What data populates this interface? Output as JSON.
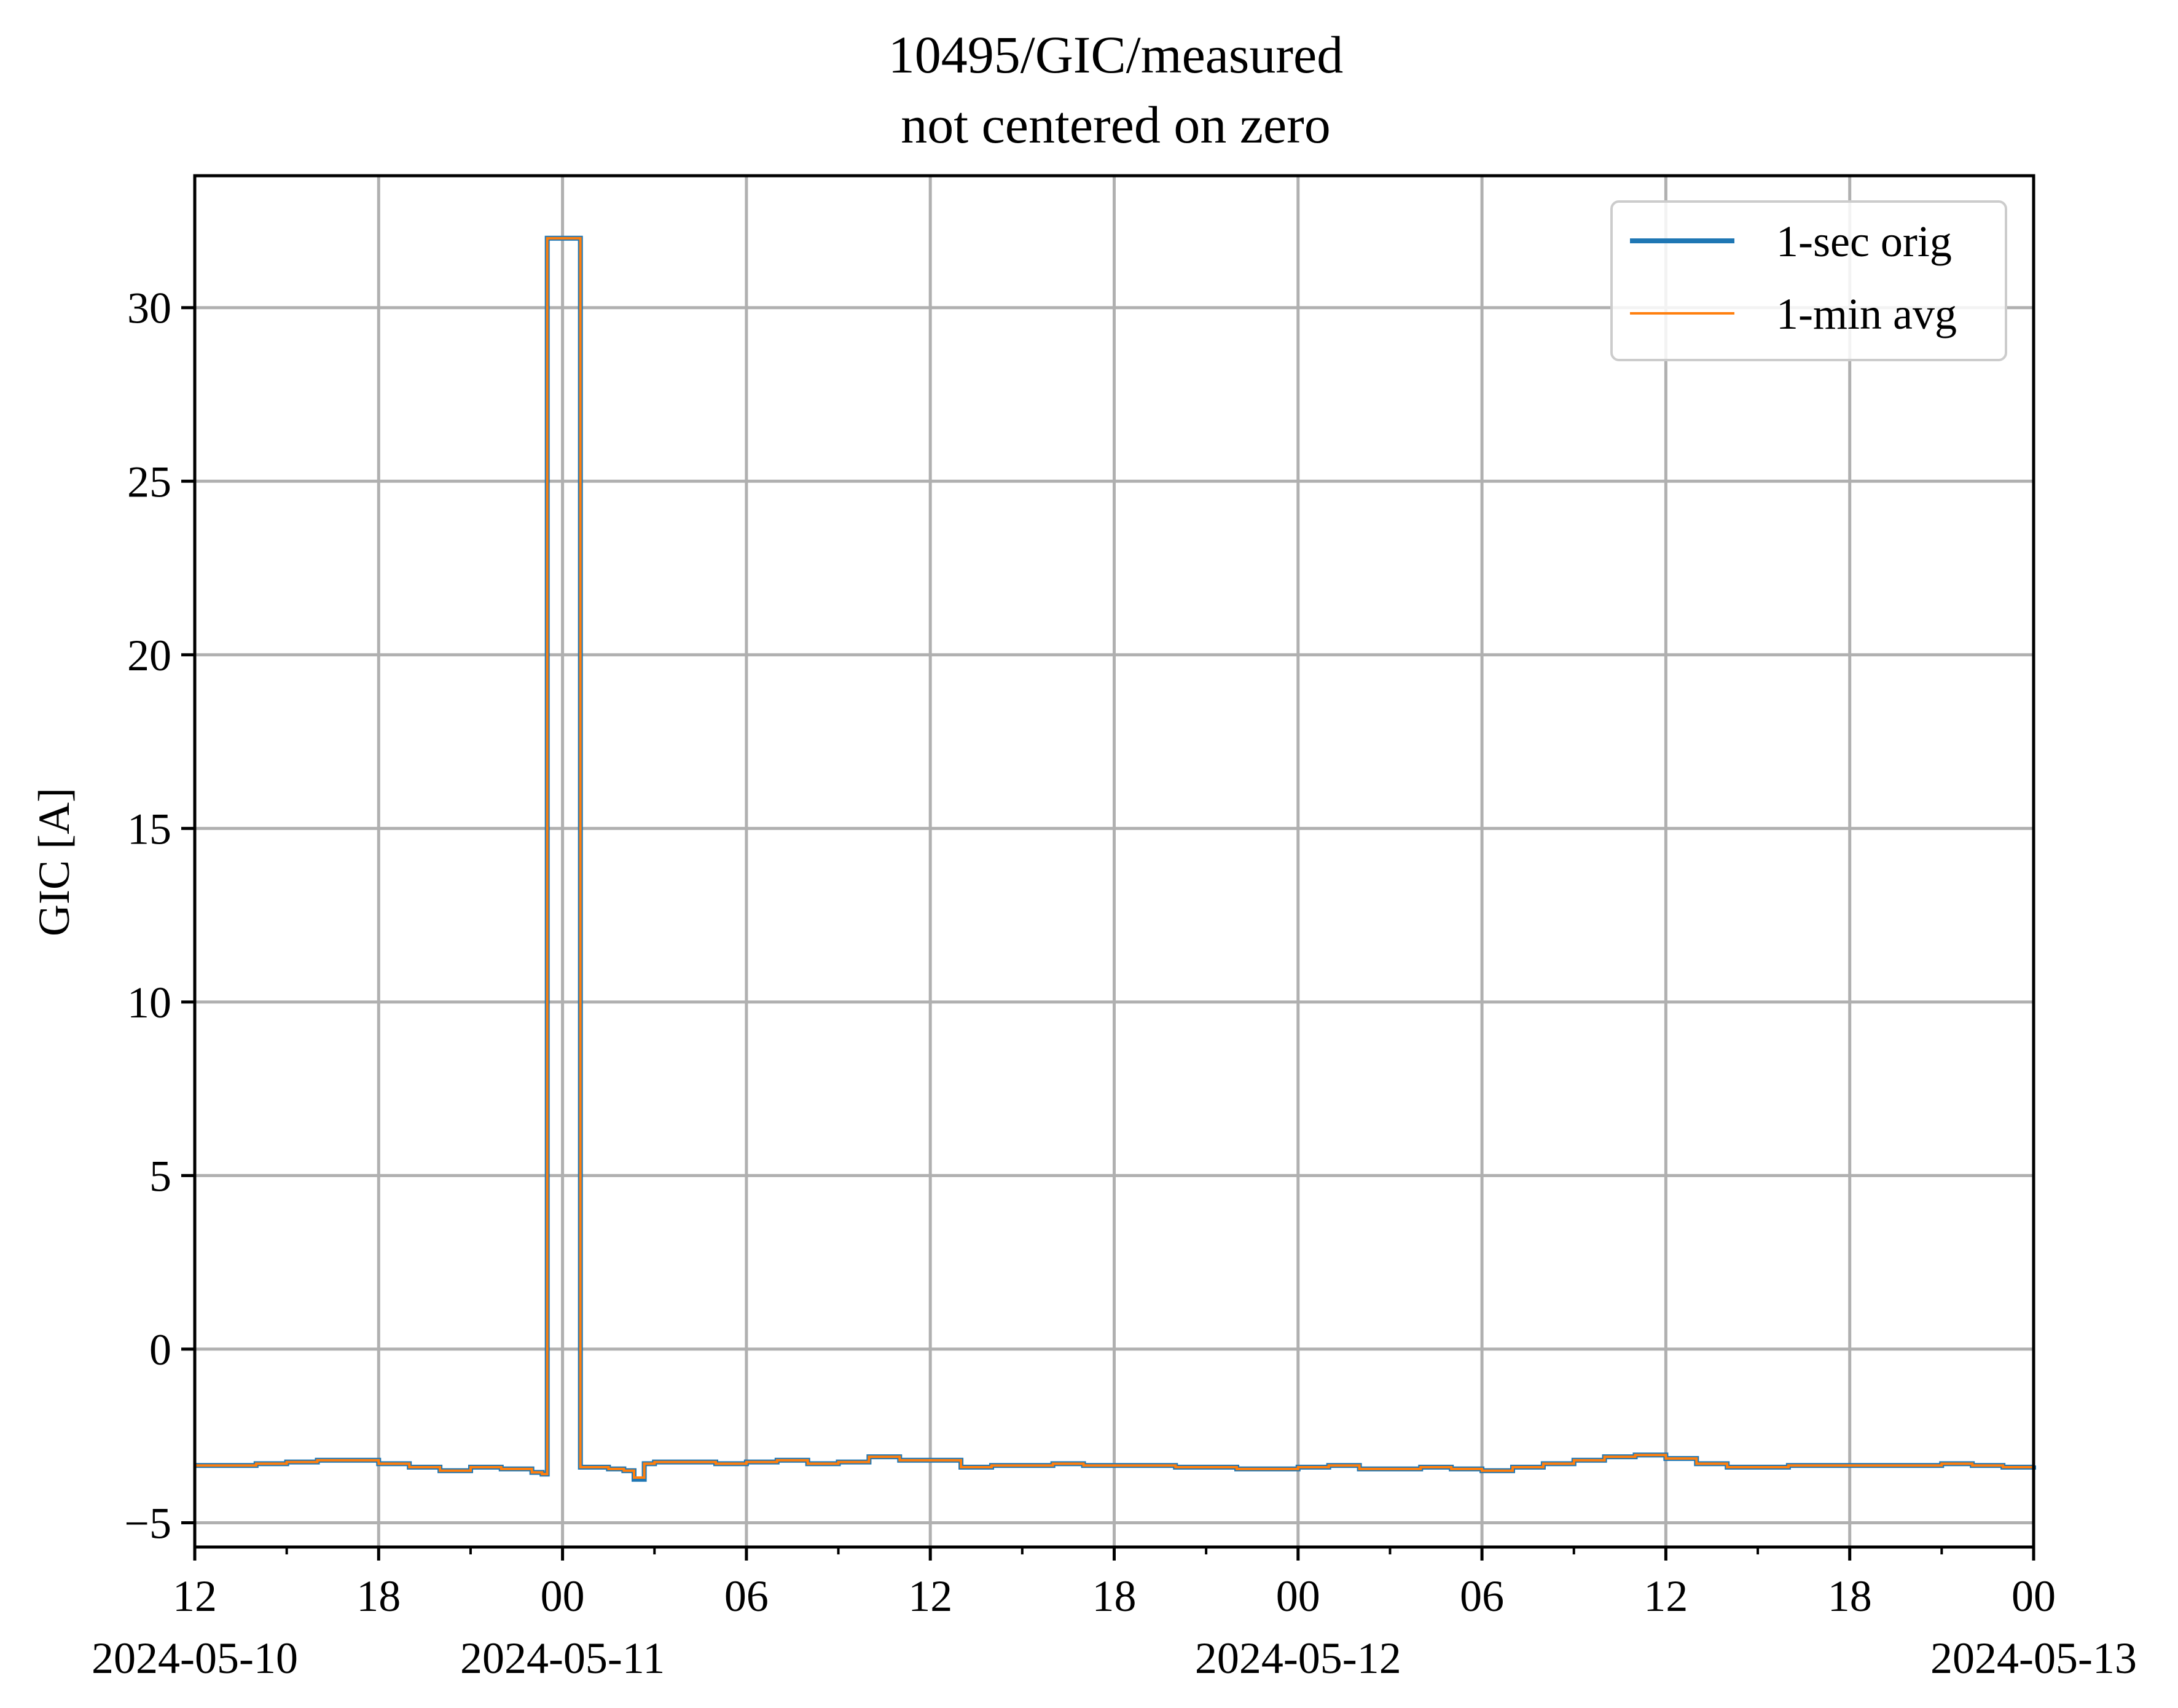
{
  "chart_data": {
    "type": "line",
    "title": "10495/GIC/measured",
    "subtitle": "not centered on zero",
    "xlabel": "",
    "ylabel": "GIC [A]",
    "x_tick_labels": [
      "12",
      "18",
      "00",
      "06",
      "12",
      "18",
      "00",
      "06",
      "12",
      "18",
      "00"
    ],
    "x_ticks": [
      "2024-05-10 12:00",
      "2024-05-10 18:00",
      "2024-05-11 00:00",
      "2024-05-11 06:00",
      "2024-05-11 12:00",
      "2024-05-11 18:00",
      "2024-05-12 00:00",
      "2024-05-12 06:00",
      "2024-05-12 12:00",
      "2024-05-12 18:00",
      "2024-05-13 00:00"
    ],
    "x_date_labels": [
      {
        "at": "2024-05-10 12:00",
        "text": "2024-05-10"
      },
      {
        "at": "2024-05-11 00:00",
        "text": "2024-05-11"
      },
      {
        "at": "2024-05-12 00:00",
        "text": "2024-05-12"
      },
      {
        "at": "2024-05-13 00:00",
        "text": "2024-05-13"
      }
    ],
    "y_tick_labels": [
      "−5",
      "0",
      "5",
      "10",
      "15",
      "20",
      "25",
      "30"
    ],
    "y_ticks": [
      -5,
      0,
      5,
      10,
      15,
      20,
      25,
      30
    ],
    "xlim": [
      "2024-05-10 12:00",
      "2024-05-13 00:00"
    ],
    "ylim": [
      -5.7,
      33.8
    ],
    "grid": true,
    "legend_position": "top-right",
    "series": [
      {
        "name": "1-sec orig",
        "color": "#1f77b4",
        "points": [
          [
            "2024-05-10 12:00",
            -3.35
          ],
          [
            "2024-05-10 13:00",
            -3.35
          ],
          [
            "2024-05-10 14:00",
            -3.3
          ],
          [
            "2024-05-10 15:00",
            -3.25
          ],
          [
            "2024-05-10 16:00",
            -3.2
          ],
          [
            "2024-05-10 17:00",
            -3.2
          ],
          [
            "2024-05-10 18:00",
            -3.3
          ],
          [
            "2024-05-10 19:00",
            -3.4
          ],
          [
            "2024-05-10 20:00",
            -3.5
          ],
          [
            "2024-05-10 21:00",
            -3.4
          ],
          [
            "2024-05-10 22:00",
            -3.45
          ],
          [
            "2024-05-10 23:00",
            -3.55
          ],
          [
            "2024-05-10 23:20",
            -3.6
          ],
          [
            "2024-05-10 23:30",
            32.0
          ],
          [
            "2024-05-11 00:30",
            32.0
          ],
          [
            "2024-05-11 00:35",
            -3.4
          ],
          [
            "2024-05-11 01:00",
            -3.4
          ],
          [
            "2024-05-11 01:30",
            -3.45
          ],
          [
            "2024-05-11 02:00",
            -3.5
          ],
          [
            "2024-05-11 02:20",
            -3.75
          ],
          [
            "2024-05-11 02:40",
            -3.3
          ],
          [
            "2024-05-11 03:00",
            -3.25
          ],
          [
            "2024-05-11 04:00",
            -3.25
          ],
          [
            "2024-05-11 05:00",
            -3.3
          ],
          [
            "2024-05-11 06:00",
            -3.25
          ],
          [
            "2024-05-11 07:00",
            -3.2
          ],
          [
            "2024-05-11 08:00",
            -3.3
          ],
          [
            "2024-05-11 09:00",
            -3.25
          ],
          [
            "2024-05-11 10:00",
            -3.1
          ],
          [
            "2024-05-11 11:00",
            -3.2
          ],
          [
            "2024-05-11 12:00",
            -3.2
          ],
          [
            "2024-05-11 13:00",
            -3.4
          ],
          [
            "2024-05-11 14:00",
            -3.35
          ],
          [
            "2024-05-11 15:00",
            -3.35
          ],
          [
            "2024-05-11 16:00",
            -3.3
          ],
          [
            "2024-05-11 17:00",
            -3.35
          ],
          [
            "2024-05-11 18:00",
            -3.35
          ],
          [
            "2024-05-11 19:00",
            -3.35
          ],
          [
            "2024-05-11 20:00",
            -3.4
          ],
          [
            "2024-05-11 21:00",
            -3.4
          ],
          [
            "2024-05-11 22:00",
            -3.45
          ],
          [
            "2024-05-11 23:00",
            -3.45
          ],
          [
            "2024-05-12 00:00",
            -3.4
          ],
          [
            "2024-05-12 01:00",
            -3.35
          ],
          [
            "2024-05-12 02:00",
            -3.45
          ],
          [
            "2024-05-12 03:00",
            -3.45
          ],
          [
            "2024-05-12 04:00",
            -3.4
          ],
          [
            "2024-05-12 05:00",
            -3.45
          ],
          [
            "2024-05-12 06:00",
            -3.5
          ],
          [
            "2024-05-12 07:00",
            -3.4
          ],
          [
            "2024-05-12 08:00",
            -3.3
          ],
          [
            "2024-05-12 09:00",
            -3.2
          ],
          [
            "2024-05-12 10:00",
            -3.1
          ],
          [
            "2024-05-12 11:00",
            -3.05
          ],
          [
            "2024-05-12 12:00",
            -3.15
          ],
          [
            "2024-05-12 13:00",
            -3.3
          ],
          [
            "2024-05-12 14:00",
            -3.4
          ],
          [
            "2024-05-12 15:00",
            -3.4
          ],
          [
            "2024-05-12 16:00",
            -3.35
          ],
          [
            "2024-05-12 17:00",
            -3.35
          ],
          [
            "2024-05-12 18:00",
            -3.35
          ],
          [
            "2024-05-12 19:00",
            -3.35
          ],
          [
            "2024-05-12 20:00",
            -3.35
          ],
          [
            "2024-05-12 21:00",
            -3.3
          ],
          [
            "2024-05-12 22:00",
            -3.35
          ],
          [
            "2024-05-12 23:00",
            -3.4
          ],
          [
            "2024-05-13 00:00",
            -3.35
          ]
        ]
      },
      {
        "name": "1-min avg",
        "color": "#ff7f0e",
        "points": [
          [
            "2024-05-10 12:00",
            -3.35
          ],
          [
            "2024-05-10 13:00",
            -3.35
          ],
          [
            "2024-05-10 14:00",
            -3.3
          ],
          [
            "2024-05-10 15:00",
            -3.25
          ],
          [
            "2024-05-10 16:00",
            -3.2
          ],
          [
            "2024-05-10 17:00",
            -3.2
          ],
          [
            "2024-05-10 18:00",
            -3.3
          ],
          [
            "2024-05-10 19:00",
            -3.4
          ],
          [
            "2024-05-10 20:00",
            -3.5
          ],
          [
            "2024-05-10 21:00",
            -3.4
          ],
          [
            "2024-05-10 22:00",
            -3.45
          ],
          [
            "2024-05-10 23:00",
            -3.55
          ],
          [
            "2024-05-10 23:20",
            -3.6
          ],
          [
            "2024-05-10 23:30",
            32.0
          ],
          [
            "2024-05-11 00:30",
            32.0
          ],
          [
            "2024-05-11 00:35",
            -3.4
          ],
          [
            "2024-05-11 01:00",
            -3.4
          ],
          [
            "2024-05-11 01:30",
            -3.45
          ],
          [
            "2024-05-11 02:00",
            -3.5
          ],
          [
            "2024-05-11 02:20",
            -3.7
          ],
          [
            "2024-05-11 02:40",
            -3.3
          ],
          [
            "2024-05-11 03:00",
            -3.25
          ],
          [
            "2024-05-11 04:00",
            -3.25
          ],
          [
            "2024-05-11 05:00",
            -3.3
          ],
          [
            "2024-05-11 06:00",
            -3.25
          ],
          [
            "2024-05-11 07:00",
            -3.2
          ],
          [
            "2024-05-11 08:00",
            -3.3
          ],
          [
            "2024-05-11 09:00",
            -3.25
          ],
          [
            "2024-05-11 10:00",
            -3.1
          ],
          [
            "2024-05-11 11:00",
            -3.2
          ],
          [
            "2024-05-11 12:00",
            -3.2
          ],
          [
            "2024-05-11 13:00",
            -3.4
          ],
          [
            "2024-05-11 14:00",
            -3.35
          ],
          [
            "2024-05-11 15:00",
            -3.35
          ],
          [
            "2024-05-11 16:00",
            -3.3
          ],
          [
            "2024-05-11 17:00",
            -3.35
          ],
          [
            "2024-05-11 18:00",
            -3.35
          ],
          [
            "2024-05-11 19:00",
            -3.35
          ],
          [
            "2024-05-11 20:00",
            -3.4
          ],
          [
            "2024-05-11 21:00",
            -3.4
          ],
          [
            "2024-05-11 22:00",
            -3.45
          ],
          [
            "2024-05-11 23:00",
            -3.45
          ],
          [
            "2024-05-12 00:00",
            -3.4
          ],
          [
            "2024-05-12 01:00",
            -3.35
          ],
          [
            "2024-05-12 02:00",
            -3.45
          ],
          [
            "2024-05-12 03:00",
            -3.45
          ],
          [
            "2024-05-12 04:00",
            -3.4
          ],
          [
            "2024-05-12 05:00",
            -3.45
          ],
          [
            "2024-05-12 06:00",
            -3.5
          ],
          [
            "2024-05-12 07:00",
            -3.4
          ],
          [
            "2024-05-12 08:00",
            -3.3
          ],
          [
            "2024-05-12 09:00",
            -3.2
          ],
          [
            "2024-05-12 10:00",
            -3.1
          ],
          [
            "2024-05-12 11:00",
            -3.05
          ],
          [
            "2024-05-12 12:00",
            -3.15
          ],
          [
            "2024-05-12 13:00",
            -3.3
          ],
          [
            "2024-05-12 14:00",
            -3.4
          ],
          [
            "2024-05-12 15:00",
            -3.4
          ],
          [
            "2024-05-12 16:00",
            -3.35
          ],
          [
            "2024-05-12 17:00",
            -3.35
          ],
          [
            "2024-05-12 18:00",
            -3.35
          ],
          [
            "2024-05-12 19:00",
            -3.35
          ],
          [
            "2024-05-12 20:00",
            -3.35
          ],
          [
            "2024-05-12 21:00",
            -3.3
          ],
          [
            "2024-05-12 22:00",
            -3.35
          ],
          [
            "2024-05-12 23:00",
            -3.4
          ],
          [
            "2024-05-13 00:00",
            -3.35
          ]
        ]
      }
    ]
  }
}
